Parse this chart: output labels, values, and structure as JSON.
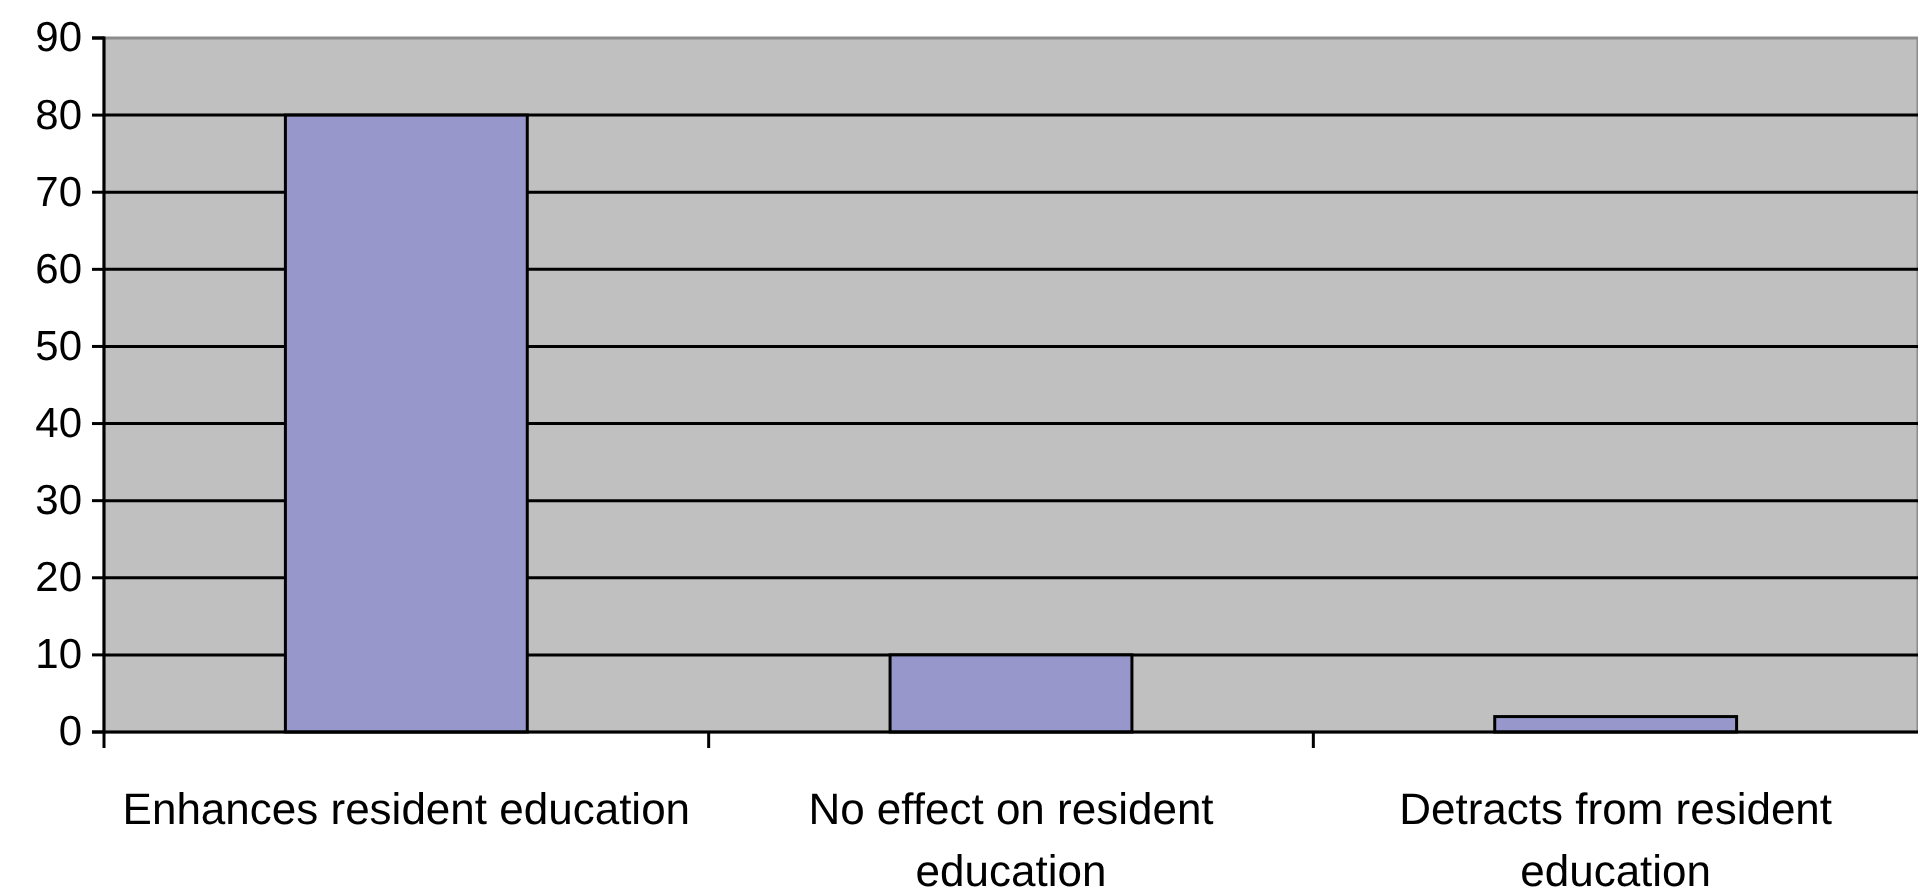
{
  "chart_data": {
    "type": "bar",
    "categories": [
      "Enhances resident education",
      "No effect on resident education",
      "Detracts from resident education"
    ],
    "values": [
      80,
      10,
      2
    ],
    "color": "#9797cb",
    "ylim": [
      0,
      90
    ],
    "yticks": [
      0,
      10,
      20,
      30,
      40,
      50,
      60,
      70,
      80,
      90
    ],
    "grid": "y"
  }
}
